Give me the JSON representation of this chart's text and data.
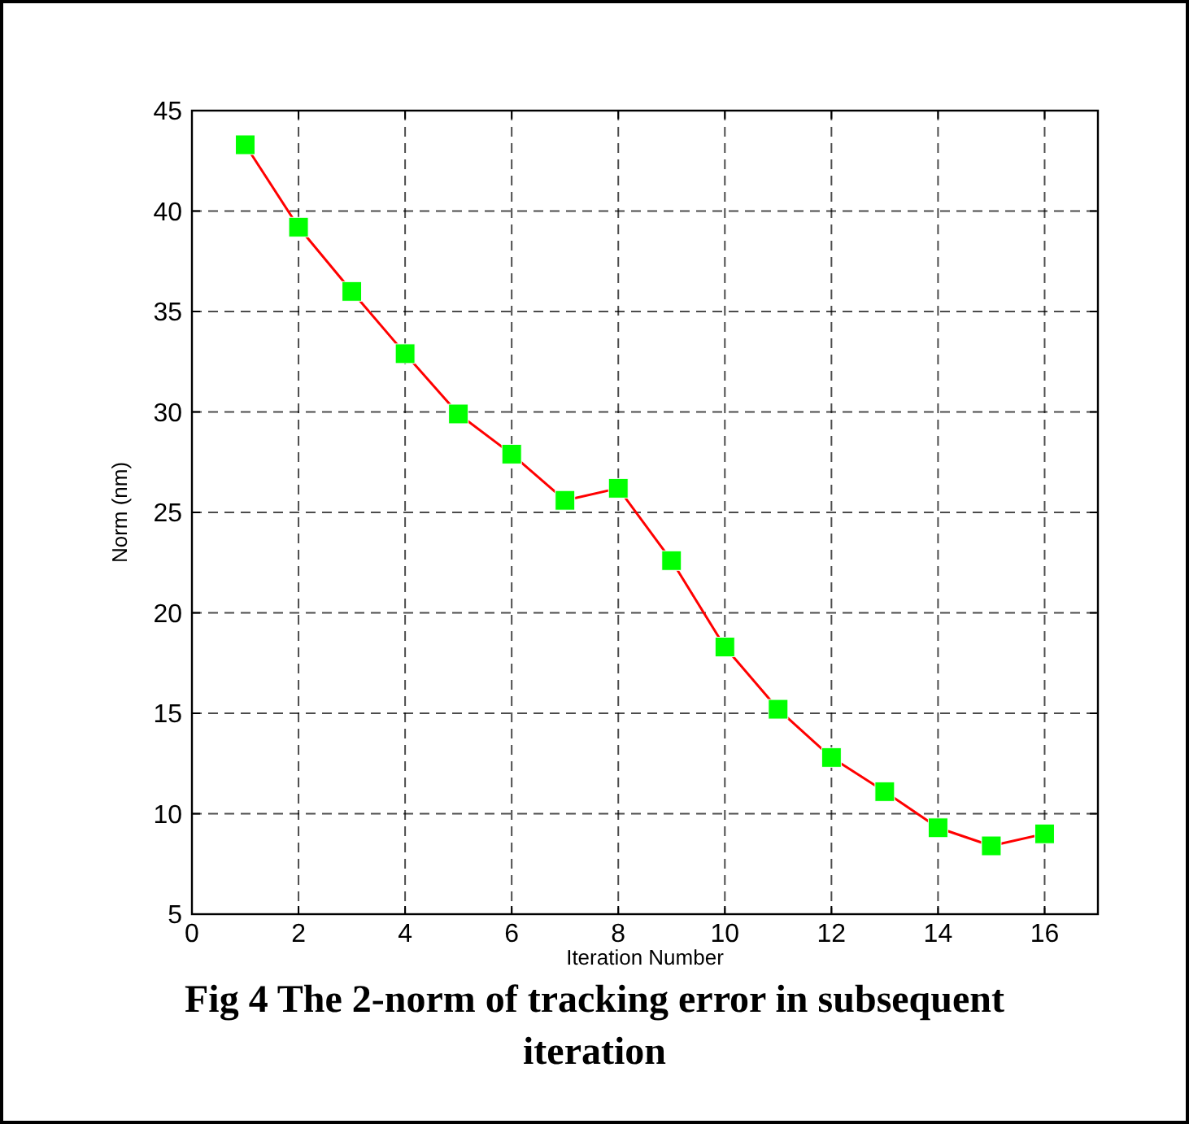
{
  "chart_data": {
    "type": "line",
    "title": "Fig 4 The 2-norm of tracking error in subsequent iteration",
    "xlabel": "Iteration Number",
    "ylabel": "Norm (nm)",
    "x": [
      1,
      2,
      3,
      4,
      5,
      6,
      7,
      8,
      9,
      10,
      11,
      12,
      13,
      14,
      15,
      16
    ],
    "series": [
      {
        "color": "#ff0000",
        "values": [
          43.3,
          39.2,
          36.0,
          32.9,
          29.9,
          27.9,
          25.6,
          26.2,
          22.6,
          18.3,
          15.2,
          12.8,
          11.1,
          9.3,
          8.4,
          9.0
        ]
      }
    ],
    "xlim": [
      0,
      17
    ],
    "xticks": [
      0,
      2,
      4,
      6,
      8,
      10,
      12,
      14,
      16
    ],
    "ylim": [
      5,
      45
    ],
    "yticks": [
      5,
      10,
      15,
      20,
      25,
      30,
      35,
      40,
      45
    ],
    "grid": true,
    "marker": "square",
    "line_style": "solid"
  }
}
